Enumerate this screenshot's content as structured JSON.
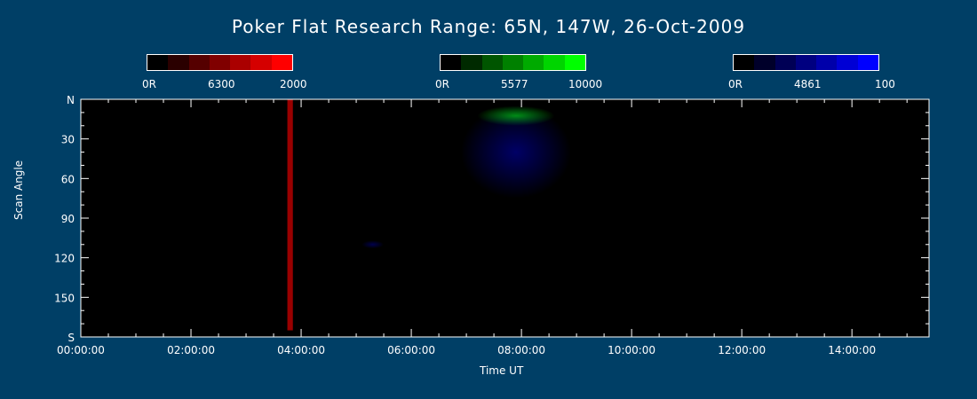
{
  "title": "Poker Flat Research Range: 65N, 147W, 26-Oct-2009",
  "colorbars": [
    {
      "label_min": "0R",
      "label_mid": "6300",
      "label_max": "2000",
      "colors": [
        "#000000",
        "#2a0000",
        "#550000",
        "#800000",
        "#aa0000",
        "#d50000",
        "#ff0000"
      ]
    },
    {
      "label_min": "0R",
      "label_mid": "5577",
      "label_max": "10000",
      "colors": [
        "#000000",
        "#002a00",
        "#005500",
        "#008000",
        "#00aa00",
        "#00d500",
        "#00ff00"
      ]
    },
    {
      "label_min": "0R",
      "label_mid": "4861",
      "label_max": "100",
      "colors": [
        "#000000",
        "#00002a",
        "#000055",
        "#000080",
        "#0000aa",
        "#0000d5",
        "#0000ff"
      ]
    }
  ],
  "chart_data": {
    "type": "heatmap",
    "title": "Poker Flat Research Range: 65N, 147W, 26-Oct-2009",
    "xlabel": "Time UT",
    "ylabel": "Scan Angle",
    "x_ticks": [
      "00:00:00",
      "02:00:00",
      "04:00:00",
      "06:00:00",
      "08:00:00",
      "10:00:00",
      "12:00:00",
      "14:00:00"
    ],
    "y_ticks": [
      "N",
      "30",
      "60",
      "90",
      "120",
      "150",
      "S"
    ],
    "xlim_hours": [
      0,
      15.4
    ],
    "ylim_deg": [
      0,
      180
    ],
    "channels": [
      {
        "wavelength": "6300",
        "color": "#ff0000",
        "max": 2000
      },
      {
        "wavelength": "5577",
        "color": "#00ff00",
        "max": 10000
      },
      {
        "wavelength": "4861",
        "color": "#0000ff",
        "max": 100
      }
    ],
    "features": [
      {
        "channel": "6300",
        "t_start": 3.75,
        "t_end": 3.85,
        "angle_start": 0,
        "angle_end": 175,
        "intensity": 0.6
      },
      {
        "channel": "5577",
        "t_start": 7.2,
        "t_end": 8.6,
        "angle_start": 5,
        "angle_end": 20,
        "intensity": 0.6
      },
      {
        "channel": "4861",
        "t_start": 6.9,
        "t_end": 8.9,
        "angle_start": 5,
        "angle_end": 75,
        "intensity": 0.4
      },
      {
        "channel": "4861",
        "t_start": 5.1,
        "t_end": 5.5,
        "angle_start": 107,
        "angle_end": 113,
        "intensity": 0.3
      }
    ]
  }
}
